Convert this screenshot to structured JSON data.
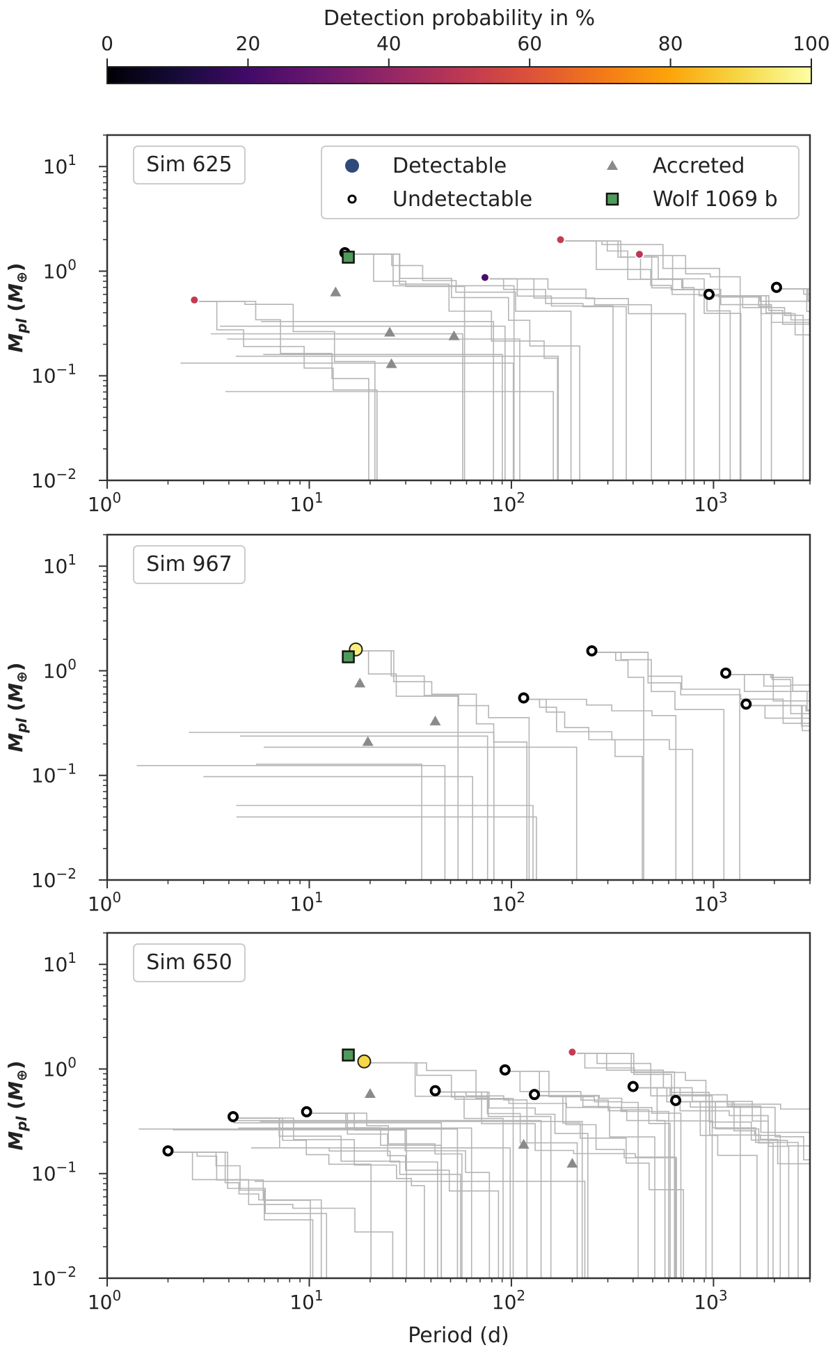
{
  "colorbar": {
    "label": "Detection probability in %",
    "ticks": [
      "0",
      "20",
      "40",
      "60",
      "80",
      "100"
    ],
    "colormap": "inferno"
  },
  "legend": {
    "entries": [
      {
        "label": "Detectable",
        "marker": "circle",
        "color": "#2f4a7a"
      },
      {
        "label": "Accreted",
        "marker": "triangle",
        "color": "#8a8a8a"
      },
      {
        "label": "Undetectable",
        "marker": "small-ring",
        "color": "#000000"
      },
      {
        "label": "Wolf 1069 b",
        "marker": "square",
        "color": "#4f9a5a"
      }
    ]
  },
  "chart_data": [
    {
      "type": "scatter",
      "title": "Sim 625",
      "xlabel": "",
      "ylabel": "M_pl (M⊕)",
      "xscale": "log",
      "yscale": "log",
      "xlim": [
        1,
        3000
      ],
      "ylim": [
        0.01,
        20
      ],
      "xticks": [
        {
          "b": "10",
          "e": "0"
        },
        {
          "b": "10",
          "e": "1"
        },
        {
          "b": "10",
          "e": "2"
        },
        {
          "b": "10",
          "e": "3"
        }
      ],
      "yticks": [
        {
          "b": "10",
          "e": "1"
        },
        {
          "b": "10",
          "e": "0"
        },
        {
          "b": "10",
          "e": "−1"
        },
        {
          "b": "10",
          "e": "−2"
        }
      ],
      "detectable": [
        {
          "x": 2.7,
          "y": 0.53,
          "p": 52
        },
        {
          "x": 74,
          "y": 0.87,
          "p": 22
        },
        {
          "x": 175,
          "y": 2.0,
          "p": 52
        },
        {
          "x": 430,
          "y": 1.45,
          "p": 50
        }
      ],
      "undetectable": [
        {
          "x": 15,
          "y": 1.5
        },
        {
          "x": 950,
          "y": 0.6
        },
        {
          "x": 2050,
          "y": 0.7
        }
      ],
      "accreted": [
        {
          "x": 13.5,
          "y": 0.63
        },
        {
          "x": 25,
          "y": 0.26
        },
        {
          "x": 25.5,
          "y": 0.13
        },
        {
          "x": 52,
          "y": 0.24
        }
      ],
      "wolf": {
        "x": 15.6,
        "y": 1.36
      }
    },
    {
      "type": "scatter",
      "title": "Sim 967",
      "xlabel": "",
      "ylabel": "M_pl (M⊕)",
      "xscale": "log",
      "yscale": "log",
      "xlim": [
        1,
        3000
      ],
      "ylim": [
        0.01,
        20
      ],
      "xticks": [
        {
          "b": "10",
          "e": "0"
        },
        {
          "b": "10",
          "e": "1"
        },
        {
          "b": "10",
          "e": "2"
        },
        {
          "b": "10",
          "e": "3"
        }
      ],
      "yticks": [
        {
          "b": "10",
          "e": "1"
        },
        {
          "b": "10",
          "e": "0"
        },
        {
          "b": "10",
          "e": "−1"
        },
        {
          "b": "10",
          "e": "−2"
        }
      ],
      "detectable": [
        {
          "x": 17,
          "y": 1.6,
          "p": 96
        }
      ],
      "undetectable": [
        {
          "x": 115,
          "y": 0.55
        },
        {
          "x": 250,
          "y": 1.55
        },
        {
          "x": 1150,
          "y": 0.95
        },
        {
          "x": 1450,
          "y": 0.48
        }
      ],
      "accreted": [
        {
          "x": 17.8,
          "y": 0.76
        },
        {
          "x": 19.5,
          "y": 0.21
        },
        {
          "x": 42,
          "y": 0.33
        }
      ],
      "wolf": {
        "x": 15.6,
        "y": 1.36
      }
    },
    {
      "type": "scatter",
      "title": "Sim 650",
      "xlabel": "Period (d)",
      "ylabel": "M_pl (M⊕)",
      "xscale": "log",
      "yscale": "log",
      "xlim": [
        1,
        3000
      ],
      "ylim": [
        0.01,
        20
      ],
      "xticks": [
        {
          "b": "10",
          "e": "0"
        },
        {
          "b": "10",
          "e": "1"
        },
        {
          "b": "10",
          "e": "2"
        },
        {
          "b": "10",
          "e": "3"
        }
      ],
      "yticks": [
        {
          "b": "10",
          "e": "1"
        },
        {
          "b": "10",
          "e": "0"
        },
        {
          "b": "10",
          "e": "−1"
        },
        {
          "b": "10",
          "e": "−2"
        }
      ],
      "detectable": [
        {
          "x": 18.7,
          "y": 1.18,
          "p": 90
        },
        {
          "x": 200,
          "y": 1.45,
          "p": 52
        }
      ],
      "undetectable": [
        {
          "x": 2.0,
          "y": 0.165
        },
        {
          "x": 4.2,
          "y": 0.35
        },
        {
          "x": 9.7,
          "y": 0.39
        },
        {
          "x": 42,
          "y": 0.62
        },
        {
          "x": 93,
          "y": 0.98
        },
        {
          "x": 130,
          "y": 0.57
        },
        {
          "x": 400,
          "y": 0.68
        },
        {
          "x": 650,
          "y": 0.5
        }
      ],
      "accreted": [
        {
          "x": 20,
          "y": 0.58
        },
        {
          "x": 115,
          "y": 0.19
        },
        {
          "x": 200,
          "y": 0.125
        }
      ],
      "wolf": {
        "x": 15.6,
        "y": 1.36
      }
    }
  ]
}
